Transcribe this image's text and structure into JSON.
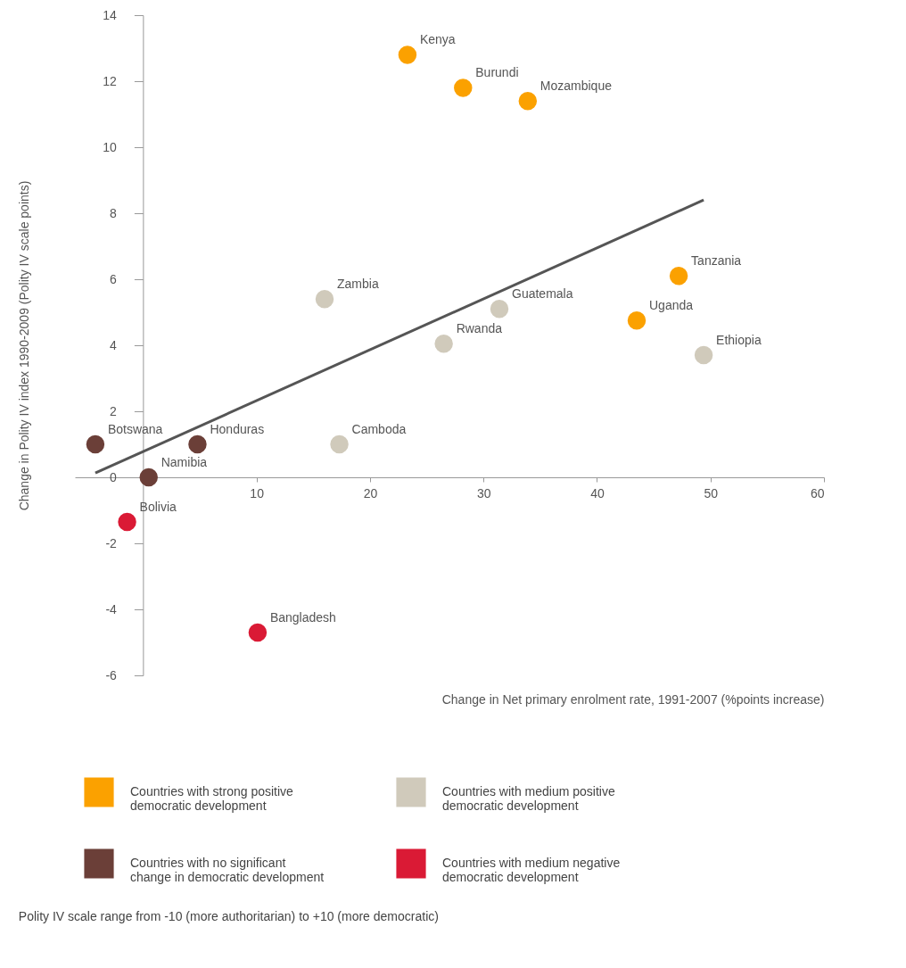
{
  "chart_data": {
    "type": "scatter",
    "xlabel": "Change in Net primary enrolment rate, 1991-2007 (%points increase)",
    "ylabel": "Change in Polity IV index 1990-2009 (Polity IV scale points)",
    "xlim": [
      -6,
      60
    ],
    "xticks": [
      10,
      20,
      30,
      40,
      50,
      60
    ],
    "ylim": [
      -6,
      14
    ],
    "yticks": [
      -6,
      -4,
      -2,
      0,
      2,
      4,
      6,
      8,
      10,
      12,
      14
    ],
    "grid": false,
    "legend": "bottom",
    "marker": "circle",
    "series": [
      {
        "name": "Countries with strong positive democratic development",
        "color": "#fba100",
        "x": [
          23.3,
          28.2,
          33.9,
          47.2,
          43.5
        ],
        "values": [
          12.8,
          11.8,
          11.4,
          6.1,
          4.75
        ]
      },
      {
        "name": "Countries with medium positive democratic development",
        "color": "#d0cabb",
        "x": [
          16.0,
          31.4,
          26.5,
          49.4,
          17.3
        ],
        "values": [
          5.4,
          5.1,
          4.05,
          3.7,
          1.0
        ]
      },
      {
        "name": "Countries with no significant change in democratic development",
        "color": "#6b3f38",
        "x": [
          -4.2,
          4.8,
          0.5
        ],
        "values": [
          1.0,
          1.0,
          0.0
        ]
      },
      {
        "name": "Countries with medium negative democratic development",
        "color": "#da1a35",
        "x": [
          -1.4,
          10.1
        ],
        "values": [
          -1.35,
          -4.7
        ]
      },
      {
        "type": "line",
        "color": "#555555",
        "marker": "none",
        "x": [
          -4.2,
          49.4
        ],
        "values": [
          0.13,
          8.4
        ]
      }
    ],
    "annotations": [
      {
        "text": "Kenya",
        "x": 23.3,
        "y": 12.8
      },
      {
        "text": "Burundi",
        "x": 28.2,
        "y": 11.8
      },
      {
        "text": "Mozambique",
        "x": 33.9,
        "y": 11.4
      },
      {
        "text": "Tanzania",
        "x": 47.2,
        "y": 6.1
      },
      {
        "text": "Uganda",
        "x": 43.5,
        "y": 4.75
      },
      {
        "text": "Zambia",
        "x": 16.0,
        "y": 5.4
      },
      {
        "text": "Guatemala",
        "x": 31.4,
        "y": 5.1
      },
      {
        "text": "Rwanda",
        "x": 26.5,
        "y": 4.05
      },
      {
        "text": "Ethiopia",
        "x": 49.4,
        "y": 3.7
      },
      {
        "text": "Camboda",
        "x": 17.3,
        "y": 1.0
      },
      {
        "text": "Botswana",
        "x": -4.2,
        "y": 1.0
      },
      {
        "text": "Honduras",
        "x": 4.8,
        "y": 1.0
      },
      {
        "text": "Namibia",
        "x": 0.5,
        "y": 0.0
      },
      {
        "text": "Bolivia",
        "x": -1.4,
        "y": -1.35
      },
      {
        "text": "Bangladesh",
        "x": 10.1,
        "y": -4.7
      },
      "Polity IV scale range from -10 (more authoritarian) to +10 (more democratic)"
    ]
  }
}
